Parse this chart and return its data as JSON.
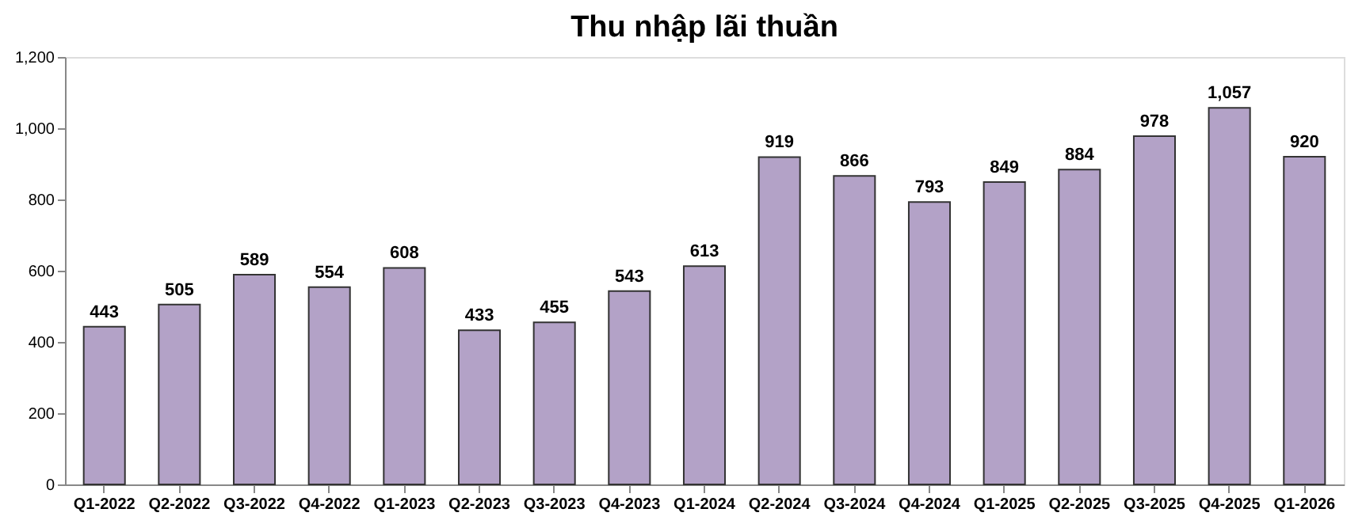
{
  "chart_data": {
    "type": "bar",
    "title": "Thu nhập lãi thuần",
    "categories": [
      "Q1-2022",
      "Q2-2022",
      "Q3-2022",
      "Q4-2022",
      "Q1-2023",
      "Q2-2023",
      "Q3-2023",
      "Q4-2023",
      "Q1-2024",
      "Q2-2024",
      "Q3-2024",
      "Q4-2024",
      "Q1-2025",
      "Q2-2025",
      "Q3-2025",
      "Q4-2025",
      "Q1-2026"
    ],
    "values": [
      443,
      505,
      589,
      554,
      608,
      433,
      455,
      543,
      613,
      919,
      866,
      793,
      849,
      884,
      978,
      1057,
      920
    ],
    "color": "#b3a2c7",
    "ylim": [
      0,
      1200
    ],
    "yticks": [
      0,
      200,
      400,
      600,
      800,
      {
        "value": 1000,
        "label": "1,000"
      },
      {
        "value": 1200,
        "label": "1,200"
      }
    ],
    "value_labels": [
      "443",
      "505",
      "589",
      "554",
      "608",
      "433",
      "455",
      "543",
      "613",
      "919",
      "866",
      "793",
      "849",
      "884",
      "978",
      "1,057",
      "920"
    ],
    "grid": false
  }
}
